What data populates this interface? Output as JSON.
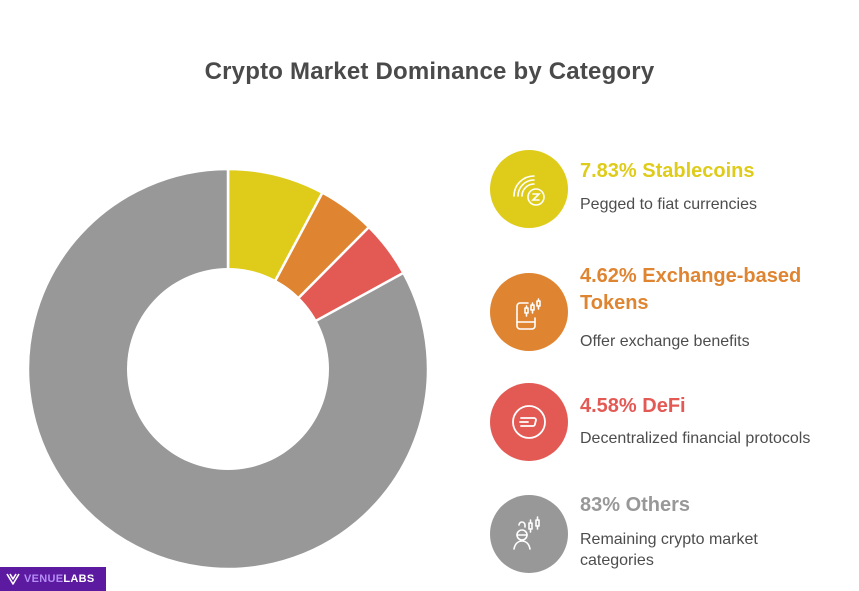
{
  "title": "Crypto Market Dominance by Category",
  "colors": {
    "stablecoins": "#dfcc1a",
    "exchange": "#df8531",
    "defi": "#e35a55",
    "others": "#989898",
    "title": "#4a4a4a",
    "brand_bg": "#5b1aa0"
  },
  "legend": [
    {
      "heading": "7.83% Stablecoins",
      "description": "Pegged to fiat currencies",
      "icon": "stablecoin-signal-icon"
    },
    {
      "heading_line1": "4.62% Exchange-based",
      "heading_line2": "Tokens",
      "description": "Offer exchange benefits",
      "icon": "phone-candlestick-icon"
    },
    {
      "heading": "4.58% DeFi",
      "description": "Decentralized financial protocols",
      "icon": "dash-coin-icon"
    },
    {
      "heading": "83% Others",
      "description_line1": "Remaining crypto market",
      "description_line2": "categories",
      "icon": "trader-candlestick-icon"
    }
  ],
  "brand": {
    "part1": "VENUE",
    "part2": "LABS"
  },
  "chart_data": {
    "type": "pie",
    "subtype": "donut",
    "title": "Crypto Market Dominance by Category",
    "categories": [
      "Stablecoins",
      "Exchange-based Tokens",
      "DeFi",
      "Others"
    ],
    "values": [
      7.83,
      4.62,
      4.58,
      83
    ],
    "unit": "%",
    "descriptions": [
      "Pegged to fiat currencies",
      "Offer exchange benefits",
      "Decentralized financial protocols",
      "Remaining crypto market categories"
    ],
    "colors": [
      "#dfcc1a",
      "#df8531",
      "#e35a55",
      "#989898"
    ],
    "start_angle": "12 o'clock, clockwise",
    "legend_position": "right"
  }
}
